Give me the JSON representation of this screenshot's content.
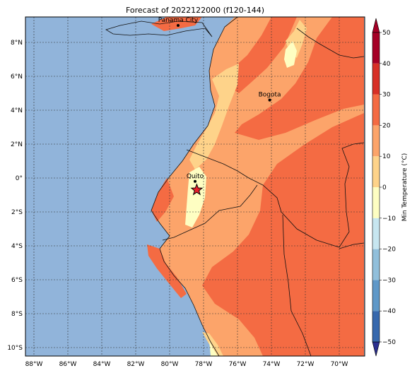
{
  "title": "Forecast of 2022122000 (f120-144)",
  "map": {
    "lon_range": [
      -88.5,
      -68.5
    ],
    "lat_range": [
      -10.5,
      9.5
    ],
    "lon_ticks": [
      {
        "value": -88,
        "label": "88°W"
      },
      {
        "value": -86,
        "label": "86°W"
      },
      {
        "value": -84,
        "label": "84°W"
      },
      {
        "value": -82,
        "label": "82°W"
      },
      {
        "value": -80,
        "label": "80°W"
      },
      {
        "value": -78,
        "label": "78°W"
      },
      {
        "value": -76,
        "label": "76°W"
      },
      {
        "value": -74,
        "label": "74°W"
      },
      {
        "value": -72,
        "label": "72°W"
      },
      {
        "value": -70,
        "label": "70°W"
      }
    ],
    "lat_ticks": [
      {
        "value": 8,
        "label": "8°N"
      },
      {
        "value": 6,
        "label": "6°N"
      },
      {
        "value": 4,
        "label": "4°N"
      },
      {
        "value": 2,
        "label": "2°N"
      },
      {
        "value": 0,
        "label": "0°"
      },
      {
        "value": -2,
        "label": "2°S"
      },
      {
        "value": -4,
        "label": "4°S"
      },
      {
        "value": -6,
        "label": "6°S"
      },
      {
        "value": -8,
        "label": "8°S"
      },
      {
        "value": -10,
        "label": "10°S"
      }
    ],
    "ocean_color": "#91b4da",
    "cities": [
      {
        "name": "Panama City",
        "lon": -79.5,
        "lat": 9.0
      },
      {
        "name": "Bogota",
        "lon": -74.1,
        "lat": 4.6
      },
      {
        "name": "Quito",
        "lon": -78.5,
        "lat": -0.2
      }
    ],
    "marker": {
      "symbol": "star",
      "lon": -78.4,
      "lat": -0.7,
      "color": "#e8202a"
    }
  },
  "colorbar": {
    "label": "Min Temperature (°C)",
    "levels": [
      -50,
      -40,
      -30,
      -20,
      -10,
      0,
      10,
      20,
      30,
      40,
      50
    ],
    "tick_labels": [
      "−50",
      "−40",
      "−30",
      "−20",
      "−10",
      "0",
      "10",
      "20",
      "30",
      "40",
      "50"
    ],
    "colors": [
      "#2b2f8f",
      "#3768ad",
      "#5f98c8",
      "#91bfdb",
      "#c7e6f0",
      "#fefec2",
      "#fed38a",
      "#fca46a",
      "#f46b43",
      "#d73027",
      "#a50026"
    ],
    "extend": "both"
  }
}
